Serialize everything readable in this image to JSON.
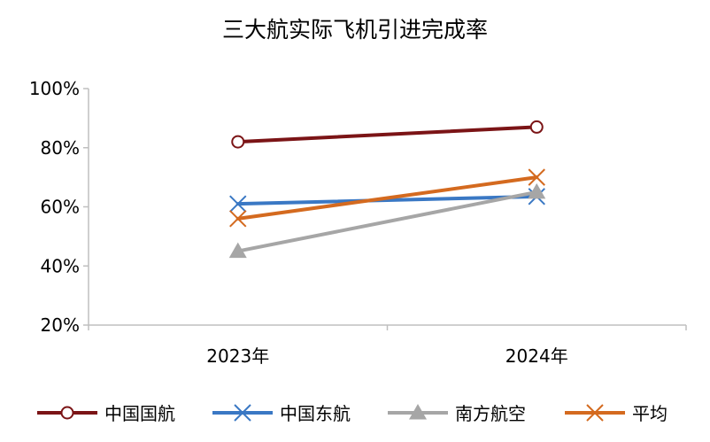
{
  "chart_data": {
    "type": "line",
    "title": "三大航实际飞机引进完成率",
    "xlabel": "",
    "ylabel": "",
    "categories": [
      "2023年",
      "2024年"
    ],
    "ylim": [
      0.2,
      1.0
    ],
    "yticks": [
      "100%",
      "80%",
      "60%",
      "40%",
      "20%"
    ],
    "ytick_values": [
      1.0,
      0.8,
      0.6,
      0.4,
      0.2
    ],
    "grid": false,
    "legend_position": "bottom",
    "series": [
      {
        "name": "中国国航",
        "values": [
          0.82,
          0.87
        ],
        "color": "#7b1416",
        "marker": "circle"
      },
      {
        "name": "中国东航",
        "values": [
          0.61,
          0.635
        ],
        "color": "#3a78c4",
        "marker": "x"
      },
      {
        "name": "南方航空",
        "values": [
          0.45,
          0.65
        ],
        "color": "#a6a6a6",
        "marker": "triangle"
      },
      {
        "name": "平均",
        "values": [
          0.56,
          0.7
        ],
        "color": "#d46a1f",
        "marker": "x"
      }
    ]
  }
}
